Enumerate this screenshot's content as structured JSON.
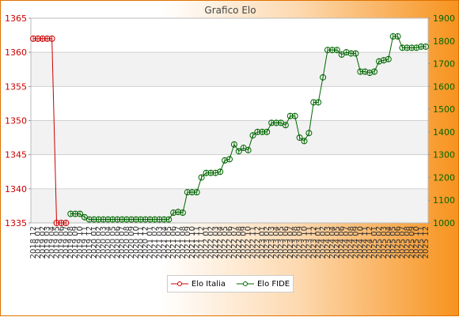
{
  "chart_data": {
    "type": "line",
    "title": "Grafico Elo",
    "x": [
      "2018 12",
      "2019 01",
      "2019 02",
      "2019 03",
      "2019 04",
      "2019 05",
      "2019 06",
      "2019 07",
      "2019 08",
      "2019 09",
      "2019 10",
      "2019 11",
      "2019 12",
      "2020 01",
      "2020 02",
      "2020 03",
      "2020 04",
      "2020 05",
      "2020 06",
      "2020 07",
      "2020 08",
      "2020 09",
      "2020 10",
      "2020 11",
      "2020 12",
      "2021 01",
      "2021 02",
      "2021 03",
      "2021 04",
      "2021 05",
      "2021 06",
      "2021 07",
      "2021 08",
      "2021 09",
      "2021 10",
      "2021 11",
      "2021 12",
      "2022 01",
      "2022 02",
      "2022 03",
      "2022 04",
      "2022 05",
      "2022 06",
      "2022 07",
      "2022 08",
      "2022 09",
      "2022 10",
      "2022 11",
      "2022 12",
      "2023 01",
      "2023 02",
      "2023 03",
      "2023 04",
      "2023 05",
      "2023 06",
      "2023 07",
      "2023 08",
      "2023 09",
      "2023 10",
      "2023 11",
      "2023 12",
      "2024 01",
      "2024 02",
      "2024 03",
      "2024 04",
      "2024 05",
      "2024 06",
      "2024 07",
      "2024 08",
      "2024 09",
      "2024 10",
      "2024 11",
      "2024 12",
      "2025 01",
      "2025 02",
      "2025 03",
      "2025 04",
      "2025 05",
      "2025 06",
      "2025 07",
      "2025 08",
      "2025 09",
      "2025 10",
      "2025 11",
      "2025 12"
    ],
    "y_left": {
      "min": 1335,
      "max": 1365,
      "ticks": [
        1335,
        1340,
        1345,
        1350,
        1355,
        1360,
        1365
      ],
      "color": "#cc0000"
    },
    "y_right": {
      "min": 1000,
      "max": 1900,
      "ticks": [
        1000,
        1100,
        1200,
        1300,
        1400,
        1500,
        1600,
        1700,
        1800,
        1900
      ],
      "color": "#006600"
    },
    "grid": true,
    "legend_position": "bottom-center",
    "series": [
      {
        "name": "Elo Italia",
        "axis": "left",
        "color": "#cc0000",
        "values": [
          1362,
          1362,
          1362,
          1362,
          1362,
          1335,
          1335,
          1335,
          null,
          null,
          null,
          null,
          null,
          null,
          null,
          null,
          null,
          null,
          null,
          null,
          null,
          null,
          null,
          null,
          null,
          null,
          null,
          null,
          null,
          null,
          null,
          null,
          null,
          null,
          null,
          null,
          null,
          null,
          null,
          null,
          null,
          null,
          null,
          null,
          null,
          null,
          null,
          null,
          null,
          null,
          null,
          null,
          null,
          null,
          null,
          null,
          null,
          null,
          null,
          null,
          null,
          null,
          null,
          null,
          null,
          null,
          null,
          null,
          null,
          null,
          null,
          null,
          null,
          null,
          null,
          null,
          null,
          null,
          null,
          null,
          null,
          null,
          null,
          null,
          null
        ]
      },
      {
        "name": "Elo FIDE",
        "axis": "right",
        "color": "#006600",
        "values": [
          null,
          null,
          null,
          null,
          null,
          null,
          null,
          null,
          1040,
          1040,
          1040,
          1025,
          1015,
          1015,
          1015,
          1015,
          1015,
          1015,
          1015,
          1015,
          1015,
          1015,
          1015,
          1015,
          1015,
          1015,
          1015,
          1015,
          1015,
          1015,
          1045,
          1048,
          1045,
          1135,
          1135,
          1135,
          1200,
          1220,
          1220,
          1220,
          1225,
          1275,
          1280,
          1345,
          1315,
          1330,
          1320,
          1385,
          1400,
          1400,
          1400,
          1440,
          1440,
          1440,
          1430,
          1470,
          1470,
          1375,
          1360,
          1395,
          1530,
          1530,
          1640,
          1760,
          1760,
          1760,
          1740,
          1750,
          1745,
          1745,
          1665,
          1665,
          1660,
          1665,
          1710,
          1715,
          1720,
          1820,
          1820,
          1770,
          1770,
          1770,
          1770,
          1775,
          1775
        ]
      }
    ]
  }
}
